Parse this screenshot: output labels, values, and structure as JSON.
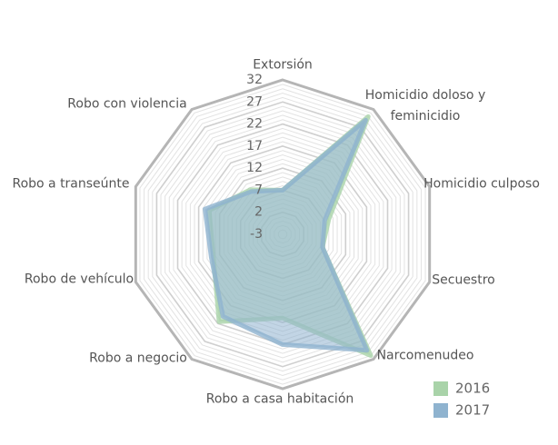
{
  "chart_data": {
    "type": "radar",
    "categories": [
      "Extorsión",
      "Homicidio doloso y feminicidio",
      "Homicidio culposo",
      "Secuestro",
      "Narcomenudeo",
      "Robo a casa habitación",
      "Robo a negocio",
      "Robo de vehículo",
      "Robo a transeúnte",
      "Robo con violencia"
    ],
    "series": [
      {
        "name": "2016",
        "color": "#a9d3a9",
        "values": [
          7,
          30,
          8,
          6.5,
          31,
          16,
          21.5,
          13.5,
          14.5,
          9.5
        ]
      },
      {
        "name": "2017",
        "color": "#8fb3cf",
        "values": [
          7,
          29,
          7,
          6.5,
          29.5,
          22,
          20,
          14,
          15.5,
          9
        ]
      }
    ],
    "ylim": [
      -3,
      32
    ],
    "yticks": [
      -3,
      2,
      7,
      12,
      17,
      22,
      27,
      32
    ],
    "grid": true,
    "legend": "bottom-right"
  }
}
